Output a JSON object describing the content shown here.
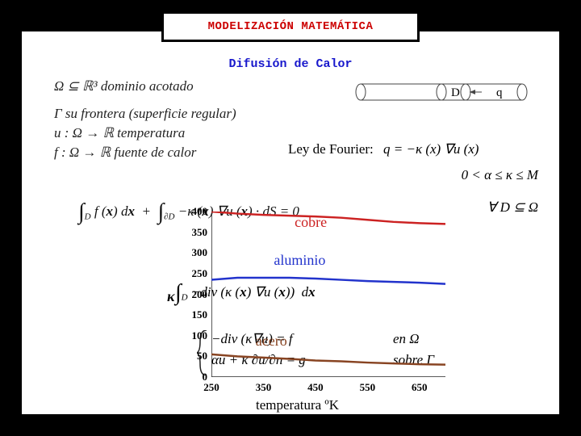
{
  "title": "MODELIZACIÓN MATEMÁTICA",
  "subtitle": "Difusión de Calor",
  "lines": {
    "domain": "Ω ⊆ ℝ³ dominio acotado",
    "boundary": "Γ su frontera (superficie regular)",
    "temp": "u : Ω → ℝ  temperatura",
    "source": "f : Ω → ℝ  fuente de calor",
    "fourier_label": "Ley de Fourier:",
    "fourier_eq": "q = −κ (x) ∇u (x)",
    "bounds": "0 < α ≤ κ ≤ M",
    "integral": "∫_D f(x) dx + ∫_∂D −κ(x)∇u(x) · dS = 0",
    "quant": "∀ D ⊆ Ω",
    "div_eq": "∫_D −div (κ(x)∇u(x)) dx",
    "pde1": "−div (κ∇u) = f",
    "pde2": "αu + κ ∂u/∂n = g",
    "pde1_loc": "en   Ω",
    "pde2_loc": "sobre  Γ"
  },
  "diagram": {
    "D_label": "D",
    "q_label": "q"
  },
  "chart": {
    "type": "line",
    "x_label": "temperatura ºK",
    "y_label": "κ",
    "x_ticks": [
      250,
      350,
      450,
      550,
      650
    ],
    "y_ticks": [
      0,
      50,
      100,
      150,
      200,
      250,
      300,
      350,
      400
    ],
    "xlim": [
      250,
      700
    ],
    "ylim": [
      0,
      400
    ],
    "grid_color": "#ffffff",
    "axis_color": "#222222",
    "tick_fontsize": 13,
    "label_fontsize": 17,
    "series": [
      {
        "name": "cobre",
        "color": "#cc2222",
        "width": 2.5,
        "label_pos": [
          410,
          3
        ],
        "points": [
          [
            250,
            400
          ],
          [
            300,
            395
          ],
          [
            350,
            392
          ],
          [
            400,
            390
          ],
          [
            450,
            388
          ],
          [
            500,
            385
          ],
          [
            550,
            380
          ],
          [
            600,
            375
          ],
          [
            650,
            372
          ],
          [
            700,
            370
          ]
        ]
      },
      {
        "name": "aluminio",
        "color": "#2233cc",
        "width": 2.5,
        "label_pos": [
          370,
          50
        ],
        "points": [
          [
            250,
            235
          ],
          [
            300,
            240
          ],
          [
            350,
            240
          ],
          [
            400,
            240
          ],
          [
            450,
            238
          ],
          [
            500,
            235
          ],
          [
            550,
            232
          ],
          [
            600,
            230
          ],
          [
            650,
            228
          ],
          [
            700,
            225
          ]
        ]
      },
      {
        "name": "acero",
        "color": "#884422",
        "width": 2.5,
        "label_pos": [
          335,
          150
        ],
        "points": [
          [
            250,
            55
          ],
          [
            300,
            50
          ],
          [
            350,
            47
          ],
          [
            400,
            44
          ],
          [
            450,
            40
          ],
          [
            500,
            38
          ],
          [
            550,
            35
          ],
          [
            600,
            33
          ],
          [
            650,
            31
          ],
          [
            700,
            30
          ]
        ]
      }
    ]
  },
  "colors": {
    "title": "#cc0000",
    "subtitle": "#1818cc",
    "text": "#222222",
    "bg": "#ffffff",
    "frame": "#000000"
  }
}
